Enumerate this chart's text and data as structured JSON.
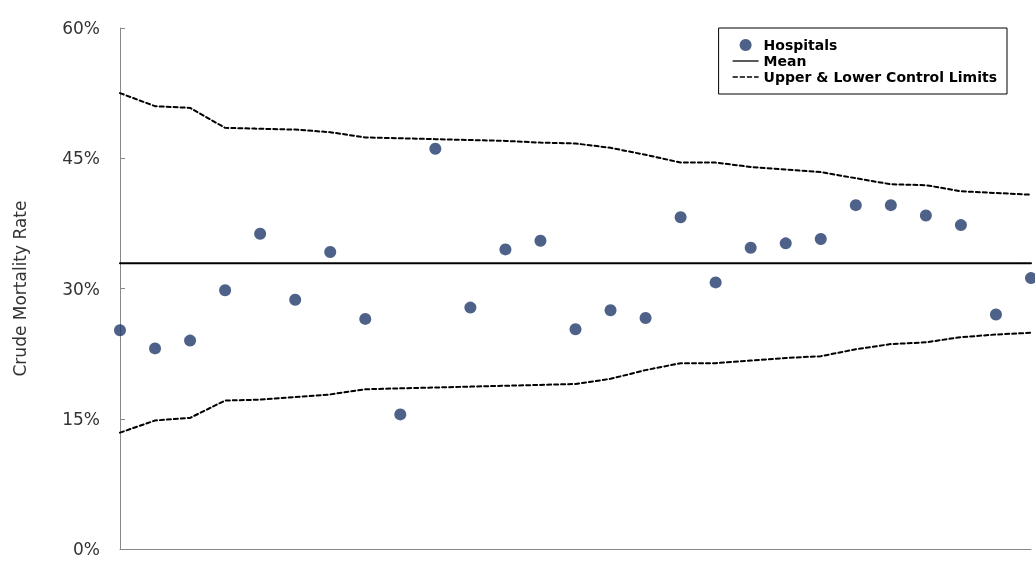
{
  "chart_data": {
    "type": "scatter",
    "ylabel": "Crude Mortality Rate",
    "categories": [
      null,
      null,
      null,
      null,
      null,
      null,
      null,
      null,
      null,
      null,
      null,
      null,
      null,
      null,
      null,
      null,
      null,
      null,
      null,
      null,
      null,
      null,
      null,
      null,
      null,
      null,
      null
    ],
    "series": [
      {
        "name": "Hospitals",
        "type": "scatter",
        "marker": "circle",
        "color": "#213a6b",
        "values": [
          25.2,
          23.1,
          24.0,
          29.8,
          36.3,
          28.7,
          34.2,
          26.5,
          15.5,
          46.1,
          27.8,
          34.5,
          35.5,
          25.3,
          27.5,
          26.6,
          38.2,
          30.7,
          34.7,
          35.2,
          35.7,
          39.6,
          39.6,
          38.4,
          37.3,
          27.0,
          31.2
        ]
      },
      {
        "name": "Mean",
        "type": "line",
        "marker": "none",
        "line_style": "solid",
        "color": "#000000",
        "values": [
          32.9,
          32.9,
          32.9,
          32.9,
          32.9,
          32.9,
          32.9,
          32.9,
          32.9,
          32.9,
          32.9,
          32.9,
          32.9,
          32.9,
          32.9,
          32.9,
          32.9,
          32.9,
          32.9,
          32.9,
          32.9,
          32.9,
          32.9,
          32.9,
          32.9,
          32.9,
          32.9
        ]
      },
      {
        "name": "Upper & Lower Control Limits",
        "type": "line",
        "marker": "none",
        "line_style": "dashed",
        "color": "#000000",
        "values": [
          52.5,
          51.0,
          50.8,
          48.5,
          48.4,
          48.3,
          48.0,
          47.4,
          47.3,
          47.2,
          47.1,
          47.0,
          46.8,
          46.7,
          46.2,
          45.4,
          44.5,
          44.5,
          44.0,
          43.7,
          43.4,
          42.7,
          42.0,
          41.9,
          41.2,
          41.0,
          40.8
        ]
      },
      {
        "type": "line",
        "marker": "none",
        "line_style": "dashed",
        "color": "#000000",
        "values": [
          13.4,
          14.8,
          15.1,
          17.1,
          17.2,
          17.5,
          17.8,
          18.4,
          18.5,
          18.6,
          18.7,
          18.8,
          18.9,
          19.0,
          19.6,
          20.6,
          21.4,
          21.4,
          21.7,
          22.0,
          22.2,
          23.0,
          23.6,
          23.8,
          24.4,
          24.7,
          24.9
        ]
      }
    ],
    "ylim": [
      0,
      60
    ],
    "yticks": [
      {
        "value": 0,
        "label": "0%"
      },
      {
        "value": 15,
        "label": "15%"
      },
      {
        "value": 30,
        "label": "30%"
      },
      {
        "value": 45,
        "label": "45%"
      },
      {
        "value": 60,
        "label": "60%"
      }
    ],
    "tick_labels": "y",
    "grid": false,
    "legend": "top right"
  }
}
